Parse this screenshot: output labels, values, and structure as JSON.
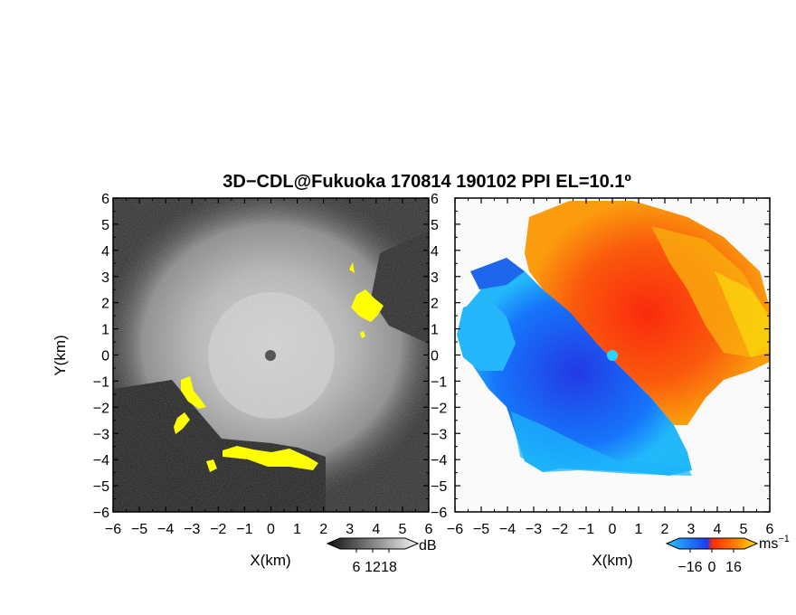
{
  "title": "3D−CDL@Fukuoka 170814 190102 PPI EL=10.1º",
  "chart_data": [
    {
      "type": "heatmap",
      "panel": "left",
      "variable": "SNR",
      "colormap": "grayscale",
      "highlight_color": "#ffff00",
      "xlabel": "X(km)",
      "ylabel": "Y(km)",
      "xlim": [
        -6,
        6
      ],
      "ylim": [
        -6,
        6
      ],
      "xticks": [
        "−6",
        "−5",
        "−4",
        "−3",
        "−2",
        "−1",
        "0",
        "1",
        "2",
        "3",
        "4",
        "5",
        "6"
      ],
      "yticks": [
        "6",
        "5",
        "4",
        "3",
        "2",
        "1",
        "0",
        "−1",
        "−2",
        "−3",
        "−4",
        "−5",
        "−6"
      ],
      "colorbar": {
        "label": "dB",
        "ticks": [
          "6",
          "12",
          "18"
        ],
        "values": [
          6,
          12,
          18
        ]
      }
    },
    {
      "type": "heatmap",
      "panel": "right",
      "variable": "Doppler velocity",
      "colormap": "cyan-blue-red-orange-yellow",
      "xlabel": "X(km)",
      "xlim": [
        -6,
        6
      ],
      "ylim": [
        -6,
        6
      ],
      "xticks": [
        "−6",
        "−5",
        "−4",
        "−3",
        "−2",
        "−1",
        "0",
        "1",
        "2",
        "3",
        "4",
        "5",
        "6"
      ],
      "yticks": [
        "6",
        "5",
        "4",
        "3",
        "2",
        "1",
        "0",
        "−1",
        "−2",
        "−3",
        "−4",
        "−5",
        "−6"
      ],
      "colorbar": {
        "label": "ms",
        "label_sup": "−1",
        "ticks": [
          "−16",
          "0",
          "16"
        ],
        "values": [
          -16,
          0,
          16
        ]
      },
      "colors": {
        "cyan": "#22c8ff",
        "blue": "#1c3cf0",
        "red": "#ff2a00",
        "orange": "#ff8c00",
        "yellow": "#ffe600"
      }
    }
  ]
}
